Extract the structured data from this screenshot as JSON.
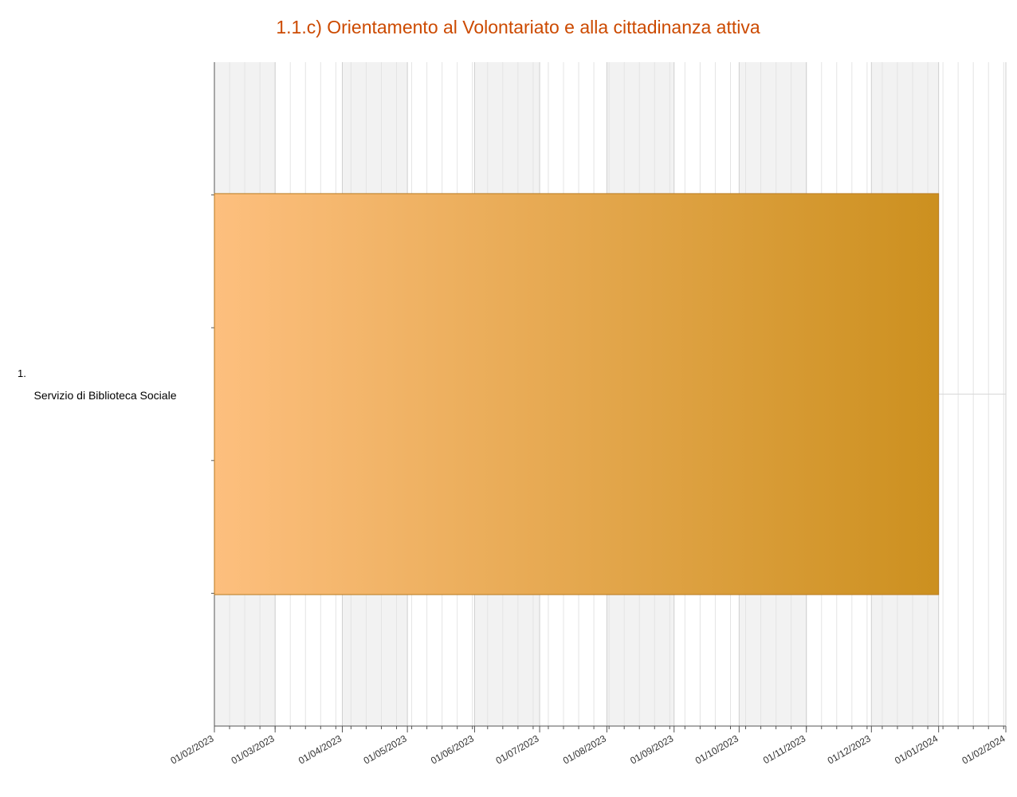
{
  "chart_data": {
    "type": "gantt",
    "title": "1.1.c) Orientamento al Volontariato e alla cittadinanza attiva",
    "category_numbers": [
      "1."
    ],
    "categories": [
      "Servizio di Biblioteca Sociale"
    ],
    "start": [
      "2023-02-01"
    ],
    "end": [
      "2024-01-01"
    ],
    "gradient": [
      "#fdbf7e",
      "#cc901f"
    ],
    "xlim": [
      "2023-02-01",
      "2024-02-01"
    ],
    "xticks": [
      {
        "value": "2023-02-01",
        "label": "01/02/2023"
      },
      {
        "value": "2023-03-01",
        "label": "01/03/2023"
      },
      {
        "value": "2023-04-01",
        "label": "01/04/2023"
      },
      {
        "value": "2023-05-01",
        "label": "01/05/2023"
      },
      {
        "value": "2023-06-01",
        "label": "01/06/2023"
      },
      {
        "value": "2023-07-01",
        "label": "01/07/2023"
      },
      {
        "value": "2023-08-01",
        "label": "01/08/2023"
      },
      {
        "value": "2023-09-01",
        "label": "01/09/2023"
      },
      {
        "value": "2023-10-01",
        "label": "01/10/2023"
      },
      {
        "value": "2023-11-01",
        "label": "01/11/2023"
      },
      {
        "value": "2023-12-01",
        "label": "01/12/2023"
      },
      {
        "value": "2024-01-01",
        "label": "01/01/2024"
      },
      {
        "value": "2024-02-01",
        "label": "01/02/2024"
      }
    ],
    "grid": true
  }
}
